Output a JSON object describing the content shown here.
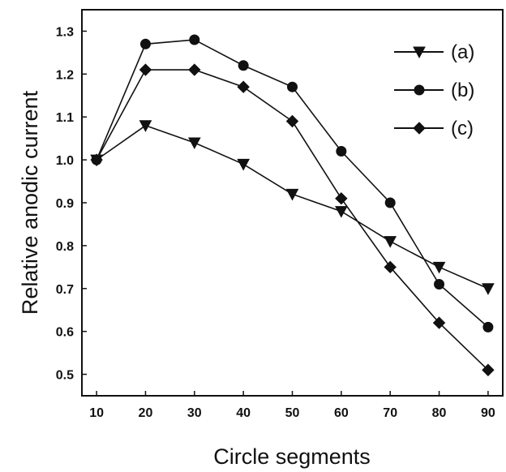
{
  "chart_data": {
    "type": "line",
    "xlabel": "Circle segments",
    "ylabel": "Relative  anodic current",
    "xlim": [
      7,
      93
    ],
    "ylim": [
      0.45,
      1.35
    ],
    "x": [
      10,
      20,
      30,
      40,
      50,
      60,
      70,
      80,
      90
    ],
    "xticks": [
      "10",
      "20",
      "30",
      "40",
      "50",
      "60",
      "70",
      "80",
      "90"
    ],
    "yticks": [
      "0.5",
      "0.6",
      "0.7",
      "0.8",
      "0.9",
      "1.0",
      "1.1",
      "1.2",
      "1.3"
    ],
    "legend_position": "top-right",
    "grid": false,
    "series": [
      {
        "name": "(a)",
        "marker": "triangle-down",
        "color": "#111111",
        "values": [
          1.0,
          1.08,
          1.04,
          0.99,
          0.92,
          0.88,
          0.81,
          0.75,
          0.7
        ]
      },
      {
        "name": "(b)",
        "marker": "circle",
        "color": "#111111",
        "values": [
          1.0,
          1.27,
          1.28,
          1.22,
          1.17,
          1.02,
          0.9,
          0.71,
          0.61
        ]
      },
      {
        "name": "(c)",
        "marker": "diamond",
        "color": "#111111",
        "values": [
          1.0,
          1.21,
          1.21,
          1.17,
          1.09,
          0.91,
          0.75,
          0.62,
          0.51
        ]
      }
    ]
  }
}
